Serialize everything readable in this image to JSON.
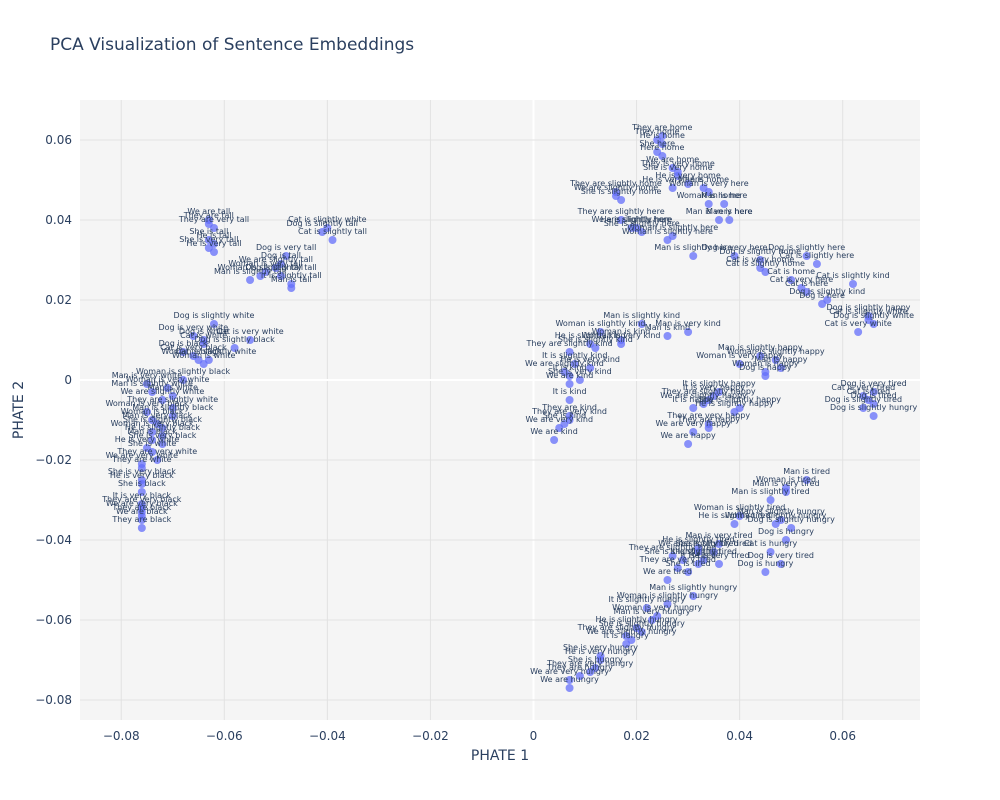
{
  "chart_data": {
    "type": "scatter",
    "title": "PCA Visualization of Sentence Embeddings",
    "xlabel": "PHATE 1",
    "ylabel": "PHATE 2",
    "xlim": [
      -0.088,
      0.075
    ],
    "ylim": [
      -0.085,
      0.07
    ],
    "xticks": [
      -0.08,
      -0.06,
      -0.04,
      -0.02,
      0,
      0.02,
      0.04,
      0.06
    ],
    "xtick_labels": [
      "−0.08",
      "−0.06",
      "−0.04",
      "−0.02",
      "0",
      "0.02",
      "0.04",
      "0.06"
    ],
    "yticks": [
      -0.08,
      -0.06,
      -0.04,
      -0.02,
      0,
      0.02,
      0.04,
      0.06
    ],
    "ytick_labels": [
      "−0.08",
      "−0.06",
      "−0.04",
      "−0.02",
      "0",
      "0.02",
      "0.04",
      "0.06"
    ],
    "grid": true,
    "marker_color": "#636efa",
    "points": [
      {
        "x": 0.025,
        "y": 0.061,
        "label": "They are home"
      },
      {
        "x": 0.024,
        "y": 0.06,
        "label": "They home"
      },
      {
        "x": 0.025,
        "y": 0.059,
        "label": "He is home"
      },
      {
        "x": 0.024,
        "y": 0.057,
        "label": "She here"
      },
      {
        "x": 0.025,
        "y": 0.056,
        "label": "Here home"
      },
      {
        "x": 0.027,
        "y": 0.053,
        "label": "We are home"
      },
      {
        "x": 0.028,
        "y": 0.052,
        "label": "They is very home"
      },
      {
        "x": 0.028,
        "y": 0.051,
        "label": "She is very home"
      },
      {
        "x": 0.03,
        "y": 0.049,
        "label": "He is very home"
      },
      {
        "x": 0.027,
        "y": 0.048,
        "label": "He is very here"
      },
      {
        "x": 0.033,
        "y": 0.048,
        "label": "Man is home"
      },
      {
        "x": 0.034,
        "y": 0.047,
        "label": "Woman is very here"
      },
      {
        "x": 0.016,
        "y": 0.047,
        "label": "They are slightly home"
      },
      {
        "x": 0.016,
        "y": 0.046,
        "label": "We are slightly home"
      },
      {
        "x": 0.017,
        "y": 0.045,
        "label": "She is slightly home"
      },
      {
        "x": 0.034,
        "y": 0.044,
        "label": "Woman is home"
      },
      {
        "x": 0.037,
        "y": 0.044,
        "label": "Man is here"
      },
      {
        "x": 0.036,
        "y": 0.04,
        "label": "Man is very here"
      },
      {
        "x": 0.038,
        "y": 0.04,
        "label": "Man is here"
      },
      {
        "x": 0.017,
        "y": 0.04,
        "label": "They are slightly here"
      },
      {
        "x": 0.019,
        "y": 0.038,
        "label": "We are slightly here"
      },
      {
        "x": 0.02,
        "y": 0.038,
        "label": "He is slightly here"
      },
      {
        "x": 0.021,
        "y": 0.037,
        "label": "She is slightly here"
      },
      {
        "x": 0.027,
        "y": 0.036,
        "label": "Woman is slightly here"
      },
      {
        "x": 0.026,
        "y": 0.035,
        "label": "Woman is slightly here"
      },
      {
        "x": 0.031,
        "y": 0.031,
        "label": "Man is slightly here"
      },
      {
        "x": 0.039,
        "y": 0.031,
        "label": "Dog is very here"
      },
      {
        "x": 0.044,
        "y": 0.03,
        "label": "Dog is slightly home"
      },
      {
        "x": 0.053,
        "y": 0.031,
        "label": "Dog is slightly here"
      },
      {
        "x": 0.055,
        "y": 0.029,
        "label": "Cat is slightly here"
      },
      {
        "x": 0.044,
        "y": 0.028,
        "label": "Cat is very home"
      },
      {
        "x": 0.045,
        "y": 0.027,
        "label": "Cat is slightly home"
      },
      {
        "x": 0.05,
        "y": 0.025,
        "label": "Cat is home"
      },
      {
        "x": 0.062,
        "y": 0.024,
        "label": "Cat is slightly kind"
      },
      {
        "x": 0.052,
        "y": 0.023,
        "label": "Cat is very here"
      },
      {
        "x": 0.053,
        "y": 0.022,
        "label": "Cat is here"
      },
      {
        "x": 0.057,
        "y": 0.02,
        "label": "Dog is slightly kind"
      },
      {
        "x": 0.056,
        "y": 0.019,
        "label": "Dog is here"
      },
      {
        "x": 0.065,
        "y": 0.016,
        "label": "Dog is slightly happy"
      },
      {
        "x": 0.065,
        "y": 0.015,
        "label": "Cat is slightly white"
      },
      {
        "x": 0.066,
        "y": 0.014,
        "label": "Dog is slightly white"
      },
      {
        "x": 0.063,
        "y": 0.012,
        "label": "Cat is very white"
      },
      {
        "x": -0.063,
        "y": 0.04,
        "label": "We are tall"
      },
      {
        "x": -0.063,
        "y": 0.039,
        "label": "They are tall"
      },
      {
        "x": -0.062,
        "y": 0.038,
        "label": "They are very tall"
      },
      {
        "x": -0.063,
        "y": 0.035,
        "label": "She is tall"
      },
      {
        "x": -0.062,
        "y": 0.034,
        "label": "He is tall"
      },
      {
        "x": -0.063,
        "y": 0.033,
        "label": "She is very tall"
      },
      {
        "x": -0.062,
        "y": 0.032,
        "label": "He is very tall"
      },
      {
        "x": -0.04,
        "y": 0.038,
        "label": "Cat is slightly white"
      },
      {
        "x": -0.041,
        "y": 0.037,
        "label": "Dog is slightly tall"
      },
      {
        "x": -0.039,
        "y": 0.035,
        "label": "Cat is slightly tall"
      },
      {
        "x": -0.048,
        "y": 0.031,
        "label": "Dog is very tall"
      },
      {
        "x": -0.049,
        "y": 0.029,
        "label": "Dog is tall"
      },
      {
        "x": -0.05,
        "y": 0.028,
        "label": "We are slightly tall"
      },
      {
        "x": -0.052,
        "y": 0.027,
        "label": "Woman is very tall"
      },
      {
        "x": -0.049,
        "y": 0.026,
        "label": "Dog is slightly tall"
      },
      {
        "x": -0.053,
        "y": 0.026,
        "label": "Woman is slightly tall"
      },
      {
        "x": -0.055,
        "y": 0.025,
        "label": "Man is slightly tall"
      },
      {
        "x": -0.047,
        "y": 0.024,
        "label": "It is slightly tall"
      },
      {
        "x": -0.047,
        "y": 0.023,
        "label": "Man is tall"
      },
      {
        "x": -0.062,
        "y": 0.014,
        "label": "Dog is slightly white"
      },
      {
        "x": -0.066,
        "y": 0.011,
        "label": "Dog is very white"
      },
      {
        "x": -0.064,
        "y": 0.01,
        "label": "Dog is white"
      },
      {
        "x": -0.055,
        "y": 0.01,
        "label": "Cat is very white"
      },
      {
        "x": -0.064,
        "y": 0.009,
        "label": "Cat is white"
      },
      {
        "x": -0.058,
        "y": 0.008,
        "label": "Dog is slightly black"
      },
      {
        "x": -0.068,
        "y": 0.007,
        "label": "Dog is black"
      },
      {
        "x": -0.066,
        "y": 0.006,
        "label": "Cat is very black"
      },
      {
        "x": -0.065,
        "y": 0.005,
        "label": "Cat is black"
      },
      {
        "x": -0.063,
        "y": 0.005,
        "label": "Woman is slightly white"
      },
      {
        "x": -0.064,
        "y": 0.004,
        "label": "Woman is white"
      },
      {
        "x": -0.068,
        "y": 0.0,
        "label": "Woman is slightly black"
      },
      {
        "x": -0.075,
        "y": -0.001,
        "label": "Man is very white"
      },
      {
        "x": -0.071,
        "y": -0.002,
        "label": "Woman is very white"
      },
      {
        "x": -0.074,
        "y": -0.003,
        "label": "Man is slightly white"
      },
      {
        "x": -0.07,
        "y": -0.004,
        "label": "Man is white"
      },
      {
        "x": -0.072,
        "y": -0.005,
        "label": "We are slightly white"
      },
      {
        "x": -0.07,
        "y": -0.007,
        "label": "They are slightly white"
      },
      {
        "x": -0.075,
        "y": -0.008,
        "label": "Woman is very black"
      },
      {
        "x": -0.07,
        "y": -0.009,
        "label": "Man is slightly black"
      },
      {
        "x": -0.074,
        "y": -0.01,
        "label": "Woman is black"
      },
      {
        "x": -0.073,
        "y": -0.011,
        "label": "Man is very black"
      },
      {
        "x": -0.072,
        "y": -0.012,
        "label": "She is slightly black"
      },
      {
        "x": -0.074,
        "y": -0.013,
        "label": "Woman is very black"
      },
      {
        "x": -0.072,
        "y": -0.014,
        "label": "He is slightly black"
      },
      {
        "x": -0.074,
        "y": -0.015,
        "label": "Man is black"
      },
      {
        "x": -0.072,
        "y": -0.016,
        "label": "She is very black"
      },
      {
        "x": -0.075,
        "y": -0.017,
        "label": "He is very white"
      },
      {
        "x": -0.074,
        "y": -0.018,
        "label": "She is white"
      },
      {
        "x": -0.073,
        "y": -0.02,
        "label": "They are very white"
      },
      {
        "x": -0.076,
        "y": -0.021,
        "label": "We are very white"
      },
      {
        "x": -0.076,
        "y": -0.022,
        "label": "They are white"
      },
      {
        "x": -0.076,
        "y": -0.025,
        "label": "She is very black"
      },
      {
        "x": -0.076,
        "y": -0.026,
        "label": "He is very black"
      },
      {
        "x": -0.076,
        "y": -0.028,
        "label": "She is black"
      },
      {
        "x": -0.076,
        "y": -0.031,
        "label": "It is very black"
      },
      {
        "x": -0.076,
        "y": -0.032,
        "label": "They are very black"
      },
      {
        "x": -0.076,
        "y": -0.033,
        "label": "We are very black"
      },
      {
        "x": -0.076,
        "y": -0.034,
        "label": "They are black"
      },
      {
        "x": -0.076,
        "y": -0.035,
        "label": "We are black"
      },
      {
        "x": -0.076,
        "y": -0.037,
        "label": "They are black"
      },
      {
        "x": 0.021,
        "y": 0.014,
        "label": "Man is slightly kind"
      },
      {
        "x": 0.013,
        "y": 0.012,
        "label": "Woman is slightly kind"
      },
      {
        "x": 0.03,
        "y": 0.012,
        "label": "Man is very kind"
      },
      {
        "x": 0.026,
        "y": 0.011,
        "label": "Man is kind"
      },
      {
        "x": 0.017,
        "y": 0.01,
        "label": "Woman is kind"
      },
      {
        "x": 0.017,
        "y": 0.009,
        "label": "Woman is very kind"
      },
      {
        "x": 0.011,
        "y": 0.009,
        "label": "He is slightly kind"
      },
      {
        "x": 0.012,
        "y": 0.008,
        "label": "She is slightly kind"
      },
      {
        "x": 0.007,
        "y": 0.007,
        "label": "They are slightly kind"
      },
      {
        "x": 0.008,
        "y": 0.004,
        "label": "It is slightly kind"
      },
      {
        "x": 0.011,
        "y": 0.003,
        "label": "He is very kind"
      },
      {
        "x": 0.006,
        "y": 0.002,
        "label": "We are slightly kind"
      },
      {
        "x": 0.007,
        "y": 0.001,
        "label": "It is kind"
      },
      {
        "x": 0.009,
        "y": 0.0,
        "label": "She is very kind"
      },
      {
        "x": 0.007,
        "y": -0.001,
        "label": "We are kind"
      },
      {
        "x": 0.007,
        "y": -0.005,
        "label": "It is kind"
      },
      {
        "x": 0.007,
        "y": -0.009,
        "label": "They are kind"
      },
      {
        "x": 0.007,
        "y": -0.01,
        "label": "They are very kind"
      },
      {
        "x": 0.006,
        "y": -0.011,
        "label": "She is kind"
      },
      {
        "x": 0.005,
        "y": -0.012,
        "label": "We are very kind"
      },
      {
        "x": 0.004,
        "y": -0.015,
        "label": "We are kind"
      },
      {
        "x": 0.044,
        "y": 0.006,
        "label": "Man is slightly happy"
      },
      {
        "x": 0.047,
        "y": 0.005,
        "label": "Woman is slightly happy"
      },
      {
        "x": 0.04,
        "y": 0.004,
        "label": "Woman is very happy"
      },
      {
        "x": 0.048,
        "y": 0.003,
        "label": "Man is happy"
      },
      {
        "x": 0.045,
        "y": 0.002,
        "label": "Woman is happy"
      },
      {
        "x": 0.045,
        "y": 0.001,
        "label": "Dog is happy"
      },
      {
        "x": 0.036,
        "y": -0.003,
        "label": "It is slightly happy"
      },
      {
        "x": 0.035,
        "y": -0.004,
        "label": "It is very happy"
      },
      {
        "x": 0.034,
        "y": -0.005,
        "label": "They are slightly happy"
      },
      {
        "x": 0.033,
        "y": -0.006,
        "label": "We are slightly happy"
      },
      {
        "x": 0.031,
        "y": -0.007,
        "label": "It is happy"
      },
      {
        "x": 0.039,
        "y": -0.008,
        "label": "He is slightly happy"
      },
      {
        "x": 0.04,
        "y": -0.007,
        "label": "She is slightly happy"
      },
      {
        "x": 0.034,
        "y": -0.011,
        "label": "They are very happy"
      },
      {
        "x": 0.034,
        "y": -0.012,
        "label": "They are happy"
      },
      {
        "x": 0.031,
        "y": -0.013,
        "label": "We are very happy"
      },
      {
        "x": 0.03,
        "y": -0.016,
        "label": "We are happy"
      },
      {
        "x": 0.066,
        "y": -0.003,
        "label": "Dog is very tired"
      },
      {
        "x": 0.064,
        "y": -0.004,
        "label": "Cat is very tired"
      },
      {
        "x": 0.065,
        "y": -0.005,
        "label": "Cat is tired"
      },
      {
        "x": 0.066,
        "y": -0.006,
        "label": "Dog is tired"
      },
      {
        "x": 0.064,
        "y": -0.007,
        "label": "Dog is slightly tired"
      },
      {
        "x": 0.066,
        "y": -0.009,
        "label": "Dog is slightly hungry"
      },
      {
        "x": 0.053,
        "y": -0.025,
        "label": "Man is tired"
      },
      {
        "x": 0.049,
        "y": -0.027,
        "label": "Woman is tired"
      },
      {
        "x": 0.049,
        "y": -0.028,
        "label": "Man is very tired"
      },
      {
        "x": 0.046,
        "y": -0.03,
        "label": "Man is slightly tired"
      },
      {
        "x": 0.04,
        "y": -0.034,
        "label": "Woman is slightly tired"
      },
      {
        "x": 0.048,
        "y": -0.035,
        "label": "Man is slightly hungry"
      },
      {
        "x": 0.047,
        "y": -0.036,
        "label": "Woman is slightly hungry"
      },
      {
        "x": 0.039,
        "y": -0.036,
        "label": "He is slightly tired"
      },
      {
        "x": 0.05,
        "y": -0.037,
        "label": "Dog is slightly hungry"
      },
      {
        "x": 0.049,
        "y": -0.04,
        "label": "Dog is hungry"
      },
      {
        "x": 0.036,
        "y": -0.041,
        "label": "Man is very tired"
      },
      {
        "x": 0.032,
        "y": -0.042,
        "label": "He is slightly tired"
      },
      {
        "x": 0.035,
        "y": -0.043,
        "label": "She is slightly tired"
      },
      {
        "x": 0.032,
        "y": -0.043,
        "label": "We are slightly tired"
      },
      {
        "x": 0.046,
        "y": -0.043,
        "label": "Cat is hungry"
      },
      {
        "x": 0.027,
        "y": -0.044,
        "label": "They are slightly tired"
      },
      {
        "x": 0.029,
        "y": -0.045,
        "label": "She is slightly tired"
      },
      {
        "x": 0.033,
        "y": -0.045,
        "label": "It is slightly tired"
      },
      {
        "x": 0.048,
        "y": -0.046,
        "label": "Dog is very tired"
      },
      {
        "x": 0.036,
        "y": -0.046,
        "label": "He is very tired"
      },
      {
        "x": 0.032,
        "y": -0.046,
        "label": "It is tired"
      },
      {
        "x": 0.028,
        "y": -0.047,
        "label": "They are very tired"
      },
      {
        "x": 0.045,
        "y": -0.048,
        "label": "Dog is hungry"
      },
      {
        "x": 0.03,
        "y": -0.048,
        "label": "She is tired"
      },
      {
        "x": 0.026,
        "y": -0.05,
        "label": "We are tired"
      },
      {
        "x": 0.031,
        "y": -0.054,
        "label": "Man is slightly hungry"
      },
      {
        "x": 0.026,
        "y": -0.056,
        "label": "Woman is slightly hungry"
      },
      {
        "x": 0.022,
        "y": -0.057,
        "label": "It is slightly hungry"
      },
      {
        "x": 0.024,
        "y": -0.059,
        "label": "Woman is very hungry"
      },
      {
        "x": 0.023,
        "y": -0.06,
        "label": "Man is very hungry"
      },
      {
        "x": 0.02,
        "y": -0.062,
        "label": "He is slightly hungry"
      },
      {
        "x": 0.021,
        "y": -0.063,
        "label": "She is slightly hungry"
      },
      {
        "x": 0.018,
        "y": -0.064,
        "label": "They are slightly hungry"
      },
      {
        "x": 0.019,
        "y": -0.065,
        "label": "We are slightly hungry"
      },
      {
        "x": 0.018,
        "y": -0.066,
        "label": "It is hungry"
      },
      {
        "x": 0.013,
        "y": -0.069,
        "label": "She is very hungry"
      },
      {
        "x": 0.013,
        "y": -0.07,
        "label": "He is very hungry"
      },
      {
        "x": 0.012,
        "y": -0.072,
        "label": "She is hungry"
      },
      {
        "x": 0.011,
        "y": -0.073,
        "label": "They are very hungry"
      },
      {
        "x": 0.009,
        "y": -0.074,
        "label": "They are hungry"
      },
      {
        "x": 0.007,
        "y": -0.075,
        "label": "We are very hungry"
      },
      {
        "x": 0.007,
        "y": -0.077,
        "label": "We are hungry"
      }
    ]
  }
}
